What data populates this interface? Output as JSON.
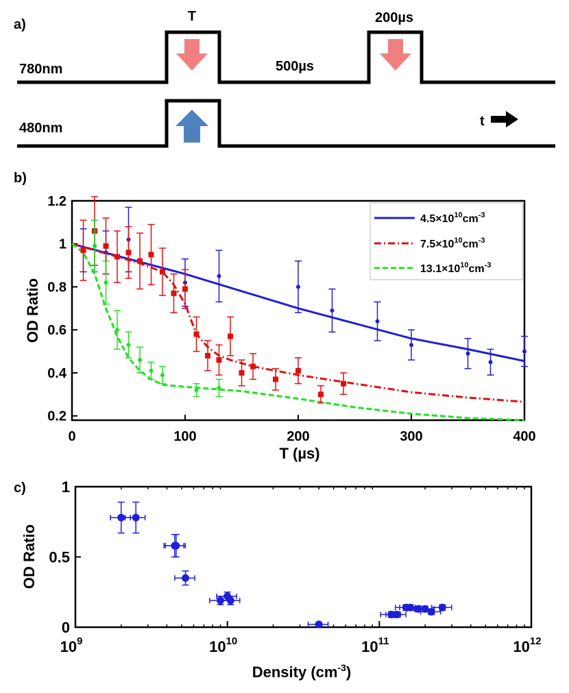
{
  "colors": {
    "blue": "#1f1fd6",
    "red": "#e01010",
    "green": "#22e022",
    "pink_arrow": "#f08080",
    "blue_arrow": "#4f81bd",
    "black": "#000000"
  },
  "timing": {
    "panel_label": "a)",
    "row1_label": "780nm",
    "row2_label": "480nm",
    "pulse_T_label": "T",
    "gap_label": "500µs",
    "pulse_200_label": "200µs",
    "time_arrow_label": "t",
    "icons": [
      "down-arrow-icon",
      "up-arrow-icon",
      "right-arrow-icon"
    ]
  },
  "chart_data": [
    {
      "type": "scatter",
      "panel_label": "b)",
      "xlabel": "T (µs)",
      "ylabel": "OD Ratio",
      "xlim": [
        0,
        400
      ],
      "ylim": [
        0.18,
        1.2
      ],
      "xticks": [
        0,
        100,
        200,
        300,
        400
      ],
      "xtick_labels": [
        "0",
        "100",
        "200",
        "300",
        "400"
      ],
      "yticks": [
        0.2,
        0.4,
        0.6,
        0.8,
        1.0,
        1.2
      ],
      "ytick_labels": [
        "0.2",
        "0.4",
        "0.6",
        "0.8",
        "1",
        "1.2"
      ],
      "legend": {
        "placement": "top-right",
        "entries": [
          {
            "base": "4.5×10",
            "exp": "10",
            "unit": "cm",
            "uexp": "-3",
            "series": "s1"
          },
          {
            "base": "7.5×10",
            "exp": "10",
            "unit": "cm",
            "uexp": "-3",
            "series": "s2"
          },
          {
            "base": "13.1×10",
            "exp": "10",
            "unit": "cm",
            "uexp": "-3",
            "series": "s3"
          }
        ]
      },
      "series": [
        {
          "id": "s1",
          "color": "blue",
          "marker": "circle",
          "line": "solid",
          "x": [
            10,
            20,
            30,
            50,
            100,
            130,
            200,
            230,
            270,
            300,
            350,
            370,
            400
          ],
          "y": [
            0.97,
            0.99,
            0.96,
            1.02,
            0.82,
            0.85,
            0.8,
            0.69,
            0.64,
            0.53,
            0.49,
            0.45,
            0.5
          ],
          "err": [
            0.1,
            0.12,
            0.1,
            0.15,
            0.11,
            0.12,
            0.12,
            0.1,
            0.09,
            0.07,
            0.07,
            0.06,
            0.07
          ],
          "fit_x": [
            0,
            50,
            100,
            150,
            200,
            250,
            300,
            350,
            400
          ],
          "fit_y": [
            1.0,
            0.93,
            0.86,
            0.78,
            0.7,
            0.63,
            0.56,
            0.51,
            0.455
          ]
        },
        {
          "id": "s2",
          "color": "red",
          "marker": "square",
          "line": "dashdot",
          "x": [
            10,
            20,
            30,
            40,
            50,
            60,
            70,
            80,
            90,
            100,
            110,
            120,
            130,
            140,
            150,
            160,
            180,
            200,
            220,
            240
          ],
          "y": [
            0.97,
            1.06,
            0.99,
            0.94,
            0.96,
            0.92,
            0.95,
            0.87,
            0.77,
            0.79,
            0.58,
            0.48,
            0.46,
            0.57,
            0.4,
            0.43,
            0.37,
            0.41,
            0.3,
            0.35
          ],
          "err": [
            0.14,
            0.16,
            0.13,
            0.12,
            0.12,
            0.13,
            0.14,
            0.11,
            0.09,
            0.09,
            0.08,
            0.07,
            0.07,
            0.09,
            0.06,
            0.06,
            0.05,
            0.06,
            0.04,
            0.05
          ],
          "fit_x": [
            0,
            20,
            40,
            60,
            80,
            90,
            100,
            110,
            120,
            130,
            140,
            160,
            200,
            250,
            300,
            350,
            400
          ],
          "fit_y": [
            1.0,
            0.97,
            0.94,
            0.91,
            0.87,
            0.81,
            0.72,
            0.58,
            0.52,
            0.48,
            0.46,
            0.43,
            0.39,
            0.35,
            0.31,
            0.285,
            0.265
          ]
        },
        {
          "id": "s3",
          "color": "green",
          "marker": "circle",
          "line": "dashed",
          "x": [
            20,
            30,
            40,
            50,
            60,
            70,
            80,
            110,
            130
          ],
          "y": [
            0.99,
            0.82,
            0.6,
            0.53,
            0.46,
            0.41,
            0.39,
            0.32,
            0.33
          ],
          "err": [
            0.12,
            0.1,
            0.09,
            0.06,
            0.06,
            0.04,
            0.04,
            0.03,
            0.04
          ],
          "fit_x": [
            0,
            10,
            20,
            30,
            40,
            50,
            60,
            70,
            80,
            100,
            150,
            200,
            250,
            300,
            350,
            400
          ],
          "fit_y": [
            1.0,
            0.96,
            0.86,
            0.7,
            0.57,
            0.47,
            0.41,
            0.37,
            0.345,
            0.335,
            0.315,
            0.28,
            0.24,
            0.21,
            0.19,
            0.18
          ]
        }
      ]
    },
    {
      "type": "scatter",
      "panel_label": "c)",
      "xlabel_base": "Density (cm",
      "xlabel_exp": "-3",
      "xlabel_end": ")",
      "ylabel": "OD Ratio",
      "xscale": "log",
      "xlim_log10": [
        9,
        12
      ],
      "ylim": [
        0,
        1
      ],
      "xticks": [
        {
          "base": "10",
          "exp": "9",
          "log10": 9
        },
        {
          "base": "10",
          "exp": "10",
          "log10": 10
        },
        {
          "base": "10",
          "exp": "11",
          "log10": 11
        },
        {
          "base": "10",
          "exp": "12",
          "log10": 12
        }
      ],
      "yticks": [
        0,
        0.5,
        1
      ],
      "ytick_labels": [
        "0",
        "0.5",
        "1"
      ],
      "series": [
        {
          "color": "blue",
          "marker": "circle",
          "x": [
            2000000000.0,
            2500000000.0,
            4500000000.0,
            4600000000.0,
            5300000000.0,
            9000000000.0,
            10000000000.0,
            10500000000.0,
            40000000000.0,
            120000000000.0,
            130000000000.0,
            150000000000.0,
            160000000000.0,
            180000000000.0,
            200000000000.0,
            220000000000.0,
            260000000000.0
          ],
          "y": [
            0.78,
            0.78,
            0.58,
            0.58,
            0.35,
            0.19,
            0.22,
            0.19,
            0.02,
            0.09,
            0.09,
            0.14,
            0.14,
            0.13,
            0.13,
            0.11,
            0.14
          ],
          "yerr": [
            0.11,
            0.11,
            0.08,
            0.08,
            0.05,
            0.03,
            0.03,
            0.03,
            0.01,
            0.02,
            0.02,
            0.02,
            0.02,
            0.02,
            0.02,
            0.02,
            0.02
          ],
          "xerr_frac": [
            0.15,
            0.15,
            0.15,
            0.15,
            0.15,
            0.15,
            0.15,
            0.15,
            0.15,
            0.15,
            0.15,
            0.15,
            0.15,
            0.15,
            0.15,
            0.15,
            0.15
          ]
        }
      ]
    }
  ]
}
